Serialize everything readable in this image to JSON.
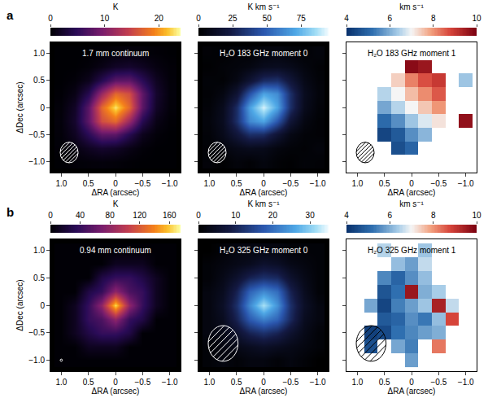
{
  "panel_letters": [
    "a",
    "b"
  ],
  "chart_data": [
    {
      "type": "heatmap",
      "title": "1.7 mm continuum",
      "color": "inferno",
      "x": [
        1.0,
        0.75,
        0.5,
        0.25,
        0,
        -0.25,
        -0.5,
        -0.75,
        -1.0
      ],
      "y": [
        -1.0,
        -0.75,
        -0.5,
        -0.25,
        0,
        0.25,
        0.5,
        0.75,
        1.0
      ],
      "cells": [
        [
          0.0,
          0.2,
          0.3,
          0.4,
          0.3,
          0.1,
          0.0,
          0.0,
          0.0
        ],
        [
          0.2,
          0.7,
          1.7,
          2.4,
          2.0,
          1.0,
          0.3,
          0.0,
          0.0
        ],
        [
          0.3,
          1.7,
          4.8,
          8.0,
          7.8,
          4.4,
          1.4,
          0.3,
          0.0
        ],
        [
          0.4,
          2.4,
          8.0,
          15.6,
          17.5,
          11.5,
          4.4,
          1.0,
          0.1
        ],
        [
          0.3,
          2.0,
          7.8,
          17.5,
          23,
          17.5,
          7.8,
          2.0,
          0.3
        ],
        [
          0.1,
          1.0,
          4.4,
          11.5,
          17.5,
          15.6,
          8.0,
          2.4,
          0.4
        ],
        [
          0.0,
          0.3,
          1.4,
          4.4,
          7.8,
          8.0,
          4.8,
          1.7,
          0.3
        ],
        [
          0.0,
          0.0,
          0.3,
          1.0,
          2.0,
          2.4,
          1.7,
          0.7,
          0.2
        ],
        [
          0.0,
          0.0,
          0.0,
          0.1,
          0.3,
          0.4,
          0.3,
          0.2,
          0.0
        ]
      ],
      "colorbar_title": "K",
      "colorbar_range": [
        0,
        24
      ],
      "colorbar_ticks": [
        0,
        10,
        20
      ],
      "beam": {
        "width": 0.33,
        "height": 0.38
      },
      "xlim": [
        1.2,
        -1.2
      ],
      "ylim": [
        -1.2,
        1.2
      ],
      "xticks": [
        {
          "value": 1,
          "label": "1.0"
        },
        0.5,
        0,
        {
          "value": -0.5,
          "label": "−0.5"
        },
        {
          "value": -1,
          "label": "−1.0"
        }
      ],
      "yticks": [
        {
          "value": -1,
          "label": "−1.0"
        },
        {
          "value": -0.5,
          "label": "−0.5"
        },
        0,
        0.5,
        {
          "value": 1,
          "label": "1.0"
        }
      ],
      "xlabel": "ΔRA (arcsec)",
      "ylabel": "ΔDec (arcsec)"
    },
    {
      "type": "heatmap",
      "title": "H₂O 183 GHz moment 0",
      "color": "blue",
      "x": [
        1.0,
        0.75,
        0.5,
        0.25,
        0,
        -0.25,
        -0.5,
        -0.75,
        -1.0
      ],
      "y": [
        -1.0,
        -0.75,
        -0.5,
        -0.25,
        0,
        0.25,
        0.5,
        0.75,
        1.0
      ],
      "cells": [
        [
          3,
          1,
          4,
          2,
          5,
          2,
          1,
          3,
          2
        ],
        [
          2,
          5,
          8,
          10,
          9,
          5,
          3,
          2,
          4
        ],
        [
          3,
          9,
          20,
          32,
          31,
          18,
          7,
          3,
          2
        ],
        [
          4,
          11,
          32,
          62,
          70,
          47,
          19,
          6,
          2
        ],
        [
          3,
          10,
          31,
          69,
          92,
          70,
          32,
          10,
          3
        ],
        [
          2,
          6,
          18,
          46,
          70,
          63,
          32,
          11,
          4
        ],
        [
          3,
          2,
          7,
          18,
          31,
          33,
          20,
          8,
          3
        ],
        [
          1,
          3,
          4,
          6,
          10,
          11,
          9,
          5,
          2
        ],
        [
          2,
          1,
          3,
          2,
          4,
          5,
          3,
          2,
          4
        ]
      ],
      "colorbar_title": "K km s⁻¹",
      "colorbar_range": [
        0,
        95
      ],
      "colorbar_ticks": [
        0,
        25,
        50,
        75
      ],
      "beam": {
        "width": 0.33,
        "height": 0.38
      },
      "xlim": [
        1.2,
        -1.2
      ],
      "ylim": [
        -1.2,
        1.2
      ],
      "xticks": [
        {
          "value": 1,
          "label": "1.0"
        },
        0.5,
        0,
        {
          "value": -0.5,
          "label": "−0.5"
        },
        {
          "value": -1,
          "label": "−1.0"
        }
      ],
      "yticks": [
        {
          "value": -1,
          "label": "−1.0"
        },
        {
          "value": -0.5,
          "label": "−0.5"
        },
        0,
        0.5,
        {
          "value": 1,
          "label": "1.0"
        }
      ],
      "xlabel": "ΔRA (arcsec)",
      "tick_labels": "x"
    },
    {
      "type": "heatmap",
      "title": "H₂O 183 GHz moment 1",
      "color": "redblue",
      "x": [
        1.0,
        0.75,
        0.5,
        0.25,
        0,
        -0.25,
        -0.5,
        -0.75,
        -1.0
      ],
      "y": [
        -1.0,
        -0.75,
        -0.5,
        -0.25,
        0,
        0.25,
        0.5,
        0.75,
        1.0
      ],
      "cells": [
        [
          null,
          null,
          null,
          null,
          null,
          null,
          null,
          null,
          null
        ],
        [
          null,
          null,
          null,
          4.6,
          5.0,
          null,
          null,
          null,
          null
        ],
        [
          null,
          null,
          4.4,
          4.8,
          5.6,
          6.1,
          null,
          null,
          null
        ],
        [
          null,
          null,
          5.1,
          5.6,
          6.3,
          6.8,
          7.2,
          null,
          9.7
        ],
        [
          null,
          null,
          5.9,
          6.5,
          7.0,
          7.5,
          8.0,
          null,
          null
        ],
        [
          null,
          null,
          6.5,
          7.0,
          7.6,
          8.1,
          8.6,
          null,
          null
        ],
        [
          null,
          null,
          null,
          7.4,
          8.2,
          8.7,
          9.0,
          null,
          6.3
        ],
        [
          null,
          null,
          null,
          null,
          9.8,
          9.6,
          null,
          null,
          null
        ],
        [
          null,
          null,
          null,
          null,
          null,
          null,
          null,
          null,
          null
        ]
      ],
      "colorbar_title": "km s⁻¹",
      "colorbar_range": [
        4,
        10
      ],
      "colorbar_ticks": [
        4,
        6,
        8,
        10
      ],
      "beam": {
        "width": 0.33,
        "height": 0.38
      },
      "xlim": [
        1.2,
        -1.2
      ],
      "ylim": [
        -1.2,
        1.2
      ],
      "xticks": [
        {
          "value": 1,
          "label": "1.0"
        },
        0.5,
        0,
        {
          "value": -0.5,
          "label": "−0.5"
        },
        {
          "value": -1,
          "label": "−1.0"
        }
      ],
      "yticks": [
        {
          "value": -1,
          "label": "−1.0"
        },
        {
          "value": -0.5,
          "label": "−0.5"
        },
        0,
        0.5,
        {
          "value": 1,
          "label": "1.0"
        }
      ],
      "xlabel": "ΔRA (arcsec)",
      "tick_labels": "x"
    },
    {
      "type": "heatmap",
      "title": "0.94 mm continuum",
      "color": "inferno",
      "x": [
        1.0,
        0.75,
        0.5,
        0.25,
        0,
        -0.25,
        -0.5,
        -0.75,
        -1.0
      ],
      "y": [
        -1.0,
        -0.75,
        -0.5,
        -0.25,
        0,
        0.25,
        0.5,
        0.75,
        1.0
      ],
      "cells": [
        [
          1,
          1,
          1,
          1,
          1,
          1,
          1,
          1,
          1
        ],
        [
          1,
          1,
          12,
          12,
          12,
          1,
          1,
          1,
          1
        ],
        [
          1,
          12,
          28,
          40,
          40,
          28,
          1,
          1,
          1
        ],
        [
          1,
          12,
          40,
          50,
          80,
          40,
          28,
          1,
          1
        ],
        [
          1,
          12,
          40,
          80,
          165,
          80,
          40,
          12,
          1
        ],
        [
          1,
          1,
          28,
          40,
          80,
          50,
          40,
          12,
          1
        ],
        [
          1,
          1,
          1,
          28,
          40,
          40,
          28,
          12,
          1
        ],
        [
          1,
          1,
          1,
          1,
          12,
          12,
          12,
          1,
          1
        ],
        [
          1,
          1,
          1,
          1,
          1,
          1,
          1,
          1,
          1
        ]
      ],
      "colorbar_title": "K",
      "colorbar_range": [
        0,
        175
      ],
      "colorbar_ticks": [
        0,
        40,
        80,
        120,
        160
      ],
      "beam": {
        "width": 0.04,
        "height": 0.04
      },
      "xlim": [
        1.2,
        -1.2
      ],
      "ylim": [
        -1.2,
        1.2
      ],
      "xticks": [
        {
          "value": 1,
          "label": "1.0"
        },
        0.5,
        0,
        {
          "value": -0.5,
          "label": "−0.5"
        },
        {
          "value": -1,
          "label": "−1.0"
        }
      ],
      "yticks": [
        {
          "value": -1,
          "label": "−1.0"
        },
        {
          "value": -0.5,
          "label": "−0.5"
        },
        0,
        0.5,
        {
          "value": 1,
          "label": "1.0"
        }
      ],
      "xlabel": "ΔRA (arcsec)",
      "ylabel": "ΔDec (arcsec)"
    },
    {
      "type": "heatmap",
      "title": "H₂O 325 GHz moment 0",
      "color": "blue",
      "x": [
        1.0,
        0.75,
        0.5,
        0.25,
        0,
        -0.25,
        -0.5,
        -0.75,
        -1.0
      ],
      "y": [
        -1.0,
        -0.75,
        -0.5,
        -0.25,
        0,
        0.25,
        0.5,
        0.75,
        1.0
      ],
      "cells": [
        [
          1,
          2,
          1,
          2,
          2,
          1,
          2,
          1,
          0
        ],
        [
          1,
          2,
          3,
          4,
          5,
          4,
          3,
          2,
          1
        ],
        [
          2,
          3,
          6,
          10,
          12,
          10,
          6,
          3,
          1
        ],
        [
          2,
          4,
          10,
          18,
          22,
          19,
          11,
          4,
          2
        ],
        [
          2,
          5,
          12,
          23,
          32,
          24,
          12,
          5,
          2
        ],
        [
          2,
          4,
          10,
          19,
          23,
          20,
          10,
          4,
          1
        ],
        [
          1,
          3,
          6,
          10,
          12,
          11,
          6,
          3,
          1
        ],
        [
          1,
          2,
          3,
          4,
          6,
          5,
          3,
          2,
          1
        ],
        [
          0,
          1,
          2,
          2,
          2,
          2,
          1,
          1,
          1
        ]
      ],
      "colorbar_title": "K km s⁻¹",
      "colorbar_range": [
        0,
        35
      ],
      "colorbar_ticks": [
        0,
        10,
        20,
        30
      ],
      "beam": {
        "width": 0.55,
        "height": 0.65
      },
      "xlim": [
        1.2,
        -1.2
      ],
      "ylim": [
        -1.2,
        1.2
      ],
      "xticks": [
        {
          "value": 1,
          "label": "1.0"
        },
        0.5,
        0,
        {
          "value": -0.5,
          "label": "−0.5"
        },
        {
          "value": -1,
          "label": "−1.0"
        }
      ],
      "yticks": [
        {
          "value": -1,
          "label": "−1.0"
        },
        {
          "value": -0.5,
          "label": "−0.5"
        },
        0,
        0.5,
        {
          "value": 1,
          "label": "1.0"
        }
      ],
      "xlabel": "ΔRA (arcsec)",
      "tick_labels": "x"
    },
    {
      "type": "heatmap",
      "title": "H₂O 325 GHz moment 1",
      "color": "redblue",
      "x": [
        1.0,
        0.75,
        0.5,
        0.25,
        0,
        -0.25,
        -0.5,
        -0.75,
        -1.0
      ],
      "y": [
        -1.0,
        -0.75,
        -0.5,
        -0.25,
        0,
        0.25,
        0.5,
        0.75,
        1.0
      ],
      "cells": [
        [
          null,
          null,
          null,
          null,
          5.8,
          null,
          null,
          null,
          null
        ],
        [
          null,
          4.6,
          null,
          5.9,
          5.4,
          null,
          8.3,
          null,
          null
        ],
        [
          null,
          4.3,
          4.5,
          5.2,
          5.5,
          5.8,
          6.0,
          null,
          null
        ],
        [
          null,
          null,
          4.8,
          5.0,
          5.6,
          5.3,
          6.2,
          8.8,
          null
        ],
        [
          null,
          5.9,
          4.4,
          5.4,
          5.8,
          6.3,
          9.4,
          6.6,
          null
        ],
        [
          null,
          null,
          4.7,
          5.2,
          9.6,
          6.0,
          6.4,
          null,
          null
        ],
        [
          null,
          null,
          5.5,
          5.0,
          5.6,
          6.2,
          null,
          null,
          null
        ],
        [
          null,
          null,
          null,
          6.2,
          5.8,
          6.6,
          null,
          null,
          null
        ],
        [
          null,
          null,
          6.5,
          null,
          null,
          6.3,
          null,
          null,
          null
        ]
      ],
      "colorbar_title": "km s⁻¹",
      "colorbar_range": [
        4,
        10
      ],
      "colorbar_ticks": [
        4,
        6,
        8,
        10
      ],
      "beam": {
        "width": 0.55,
        "height": 0.65
      },
      "xlim": [
        1.2,
        -1.2
      ],
      "ylim": [
        -1.2,
        1.2
      ],
      "xticks": [
        {
          "value": 1,
          "label": "1.0"
        },
        0.5,
        0,
        {
          "value": -0.5,
          "label": "−0.5"
        },
        {
          "value": -1,
          "label": "−1.0"
        }
      ],
      "yticks": [
        {
          "value": -1,
          "label": "−1.0"
        },
        {
          "value": -0.5,
          "label": "−0.5"
        },
        0,
        0.5,
        {
          "value": 1,
          "label": "1.0"
        }
      ],
      "xlabel": "ΔRA (arcsec)",
      "tick_labels": "x"
    }
  ]
}
